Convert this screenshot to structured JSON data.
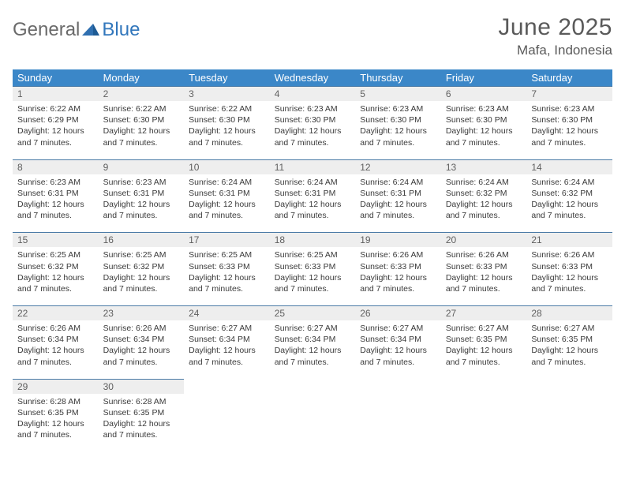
{
  "branding": {
    "text_general": "General",
    "text_blue": "Blue",
    "logo_color": "#2f6fb0"
  },
  "title": {
    "month_year": "June 2025",
    "location": "Mafa, Indonesia"
  },
  "colors": {
    "header_bg": "#3b87c8",
    "header_text": "#ffffff",
    "daynum_bg": "#eeeeee",
    "daynum_text": "#606060",
    "row_border": "#4a7aa6",
    "body_text": "#3a3a3a",
    "title_text": "#5a5a5a"
  },
  "weekdays": [
    "Sunday",
    "Monday",
    "Tuesday",
    "Wednesday",
    "Thursday",
    "Friday",
    "Saturday"
  ],
  "weeks": [
    {
      "days": [
        {
          "num": "1",
          "sunrise": "Sunrise: 6:22 AM",
          "sunset": "Sunset: 6:29 PM",
          "daylight": "Daylight: 12 hours and 7 minutes."
        },
        {
          "num": "2",
          "sunrise": "Sunrise: 6:22 AM",
          "sunset": "Sunset: 6:30 PM",
          "daylight": "Daylight: 12 hours and 7 minutes."
        },
        {
          "num": "3",
          "sunrise": "Sunrise: 6:22 AM",
          "sunset": "Sunset: 6:30 PM",
          "daylight": "Daylight: 12 hours and 7 minutes."
        },
        {
          "num": "4",
          "sunrise": "Sunrise: 6:23 AM",
          "sunset": "Sunset: 6:30 PM",
          "daylight": "Daylight: 12 hours and 7 minutes."
        },
        {
          "num": "5",
          "sunrise": "Sunrise: 6:23 AM",
          "sunset": "Sunset: 6:30 PM",
          "daylight": "Daylight: 12 hours and 7 minutes."
        },
        {
          "num": "6",
          "sunrise": "Sunrise: 6:23 AM",
          "sunset": "Sunset: 6:30 PM",
          "daylight": "Daylight: 12 hours and 7 minutes."
        },
        {
          "num": "7",
          "sunrise": "Sunrise: 6:23 AM",
          "sunset": "Sunset: 6:30 PM",
          "daylight": "Daylight: 12 hours and 7 minutes."
        }
      ]
    },
    {
      "days": [
        {
          "num": "8",
          "sunrise": "Sunrise: 6:23 AM",
          "sunset": "Sunset: 6:31 PM",
          "daylight": "Daylight: 12 hours and 7 minutes."
        },
        {
          "num": "9",
          "sunrise": "Sunrise: 6:23 AM",
          "sunset": "Sunset: 6:31 PM",
          "daylight": "Daylight: 12 hours and 7 minutes."
        },
        {
          "num": "10",
          "sunrise": "Sunrise: 6:24 AM",
          "sunset": "Sunset: 6:31 PM",
          "daylight": "Daylight: 12 hours and 7 minutes."
        },
        {
          "num": "11",
          "sunrise": "Sunrise: 6:24 AM",
          "sunset": "Sunset: 6:31 PM",
          "daylight": "Daylight: 12 hours and 7 minutes."
        },
        {
          "num": "12",
          "sunrise": "Sunrise: 6:24 AM",
          "sunset": "Sunset: 6:31 PM",
          "daylight": "Daylight: 12 hours and 7 minutes."
        },
        {
          "num": "13",
          "sunrise": "Sunrise: 6:24 AM",
          "sunset": "Sunset: 6:32 PM",
          "daylight": "Daylight: 12 hours and 7 minutes."
        },
        {
          "num": "14",
          "sunrise": "Sunrise: 6:24 AM",
          "sunset": "Sunset: 6:32 PM",
          "daylight": "Daylight: 12 hours and 7 minutes."
        }
      ]
    },
    {
      "days": [
        {
          "num": "15",
          "sunrise": "Sunrise: 6:25 AM",
          "sunset": "Sunset: 6:32 PM",
          "daylight": "Daylight: 12 hours and 7 minutes."
        },
        {
          "num": "16",
          "sunrise": "Sunrise: 6:25 AM",
          "sunset": "Sunset: 6:32 PM",
          "daylight": "Daylight: 12 hours and 7 minutes."
        },
        {
          "num": "17",
          "sunrise": "Sunrise: 6:25 AM",
          "sunset": "Sunset: 6:33 PM",
          "daylight": "Daylight: 12 hours and 7 minutes."
        },
        {
          "num": "18",
          "sunrise": "Sunrise: 6:25 AM",
          "sunset": "Sunset: 6:33 PM",
          "daylight": "Daylight: 12 hours and 7 minutes."
        },
        {
          "num": "19",
          "sunrise": "Sunrise: 6:26 AM",
          "sunset": "Sunset: 6:33 PM",
          "daylight": "Daylight: 12 hours and 7 minutes."
        },
        {
          "num": "20",
          "sunrise": "Sunrise: 6:26 AM",
          "sunset": "Sunset: 6:33 PM",
          "daylight": "Daylight: 12 hours and 7 minutes."
        },
        {
          "num": "21",
          "sunrise": "Sunrise: 6:26 AM",
          "sunset": "Sunset: 6:33 PM",
          "daylight": "Daylight: 12 hours and 7 minutes."
        }
      ]
    },
    {
      "days": [
        {
          "num": "22",
          "sunrise": "Sunrise: 6:26 AM",
          "sunset": "Sunset: 6:34 PM",
          "daylight": "Daylight: 12 hours and 7 minutes."
        },
        {
          "num": "23",
          "sunrise": "Sunrise: 6:26 AM",
          "sunset": "Sunset: 6:34 PM",
          "daylight": "Daylight: 12 hours and 7 minutes."
        },
        {
          "num": "24",
          "sunrise": "Sunrise: 6:27 AM",
          "sunset": "Sunset: 6:34 PM",
          "daylight": "Daylight: 12 hours and 7 minutes."
        },
        {
          "num": "25",
          "sunrise": "Sunrise: 6:27 AM",
          "sunset": "Sunset: 6:34 PM",
          "daylight": "Daylight: 12 hours and 7 minutes."
        },
        {
          "num": "26",
          "sunrise": "Sunrise: 6:27 AM",
          "sunset": "Sunset: 6:34 PM",
          "daylight": "Daylight: 12 hours and 7 minutes."
        },
        {
          "num": "27",
          "sunrise": "Sunrise: 6:27 AM",
          "sunset": "Sunset: 6:35 PM",
          "daylight": "Daylight: 12 hours and 7 minutes."
        },
        {
          "num": "28",
          "sunrise": "Sunrise: 6:27 AM",
          "sunset": "Sunset: 6:35 PM",
          "daylight": "Daylight: 12 hours and 7 minutes."
        }
      ]
    },
    {
      "days": [
        {
          "num": "29",
          "sunrise": "Sunrise: 6:28 AM",
          "sunset": "Sunset: 6:35 PM",
          "daylight": "Daylight: 12 hours and 7 minutes."
        },
        {
          "num": "30",
          "sunrise": "Sunrise: 6:28 AM",
          "sunset": "Sunset: 6:35 PM",
          "daylight": "Daylight: 12 hours and 7 minutes."
        },
        null,
        null,
        null,
        null,
        null
      ]
    }
  ]
}
